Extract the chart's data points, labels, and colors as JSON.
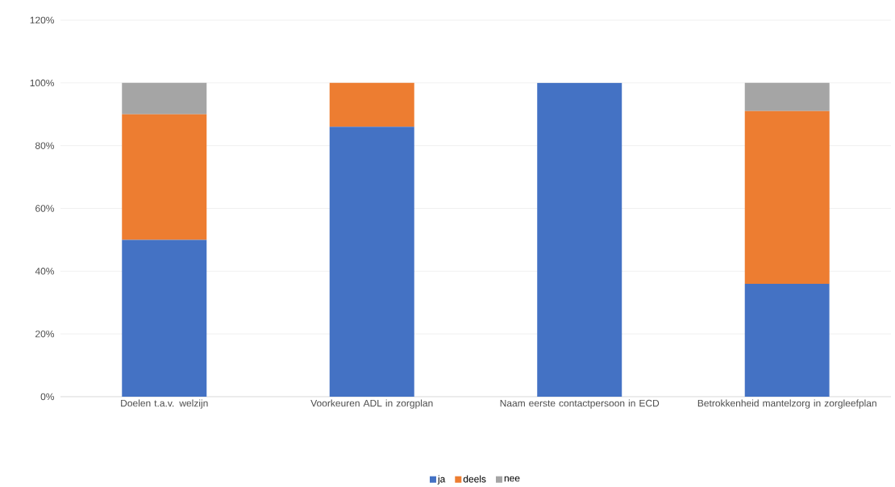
{
  "chart_data": {
    "type": "bar",
    "stacked": true,
    "categories": [
      "Doelen t.a.v. welzijn",
      "Voorkeuren ADL in zorgplan",
      "Naam eerste contactpersoon in ECD",
      "Betrokkenheid mantelzorg in zorgleefplan"
    ],
    "series": [
      {
        "name": "ja",
        "color": "#4472c4",
        "values": [
          50,
          86,
          100,
          36
        ]
      },
      {
        "name": "deels",
        "color": "#ed7d31",
        "values": [
          40,
          14,
          0,
          55
        ]
      },
      {
        "name": "nee",
        "color": "#a5a5a5",
        "values": [
          10,
          0,
          0,
          9
        ]
      }
    ],
    "ylim": [
      0,
      120
    ],
    "yticks": [
      {
        "value": 0,
        "label": "0%"
      },
      {
        "value": 20,
        "label": "20%"
      },
      {
        "value": 40,
        "label": "40%"
      },
      {
        "value": 60,
        "label": "60%"
      },
      {
        "value": 80,
        "label": "80%"
      },
      {
        "value": 100,
        "label": "100%"
      },
      {
        "value": 120,
        "label": "120%"
      }
    ],
    "grid": "y",
    "legend": "bottom"
  }
}
